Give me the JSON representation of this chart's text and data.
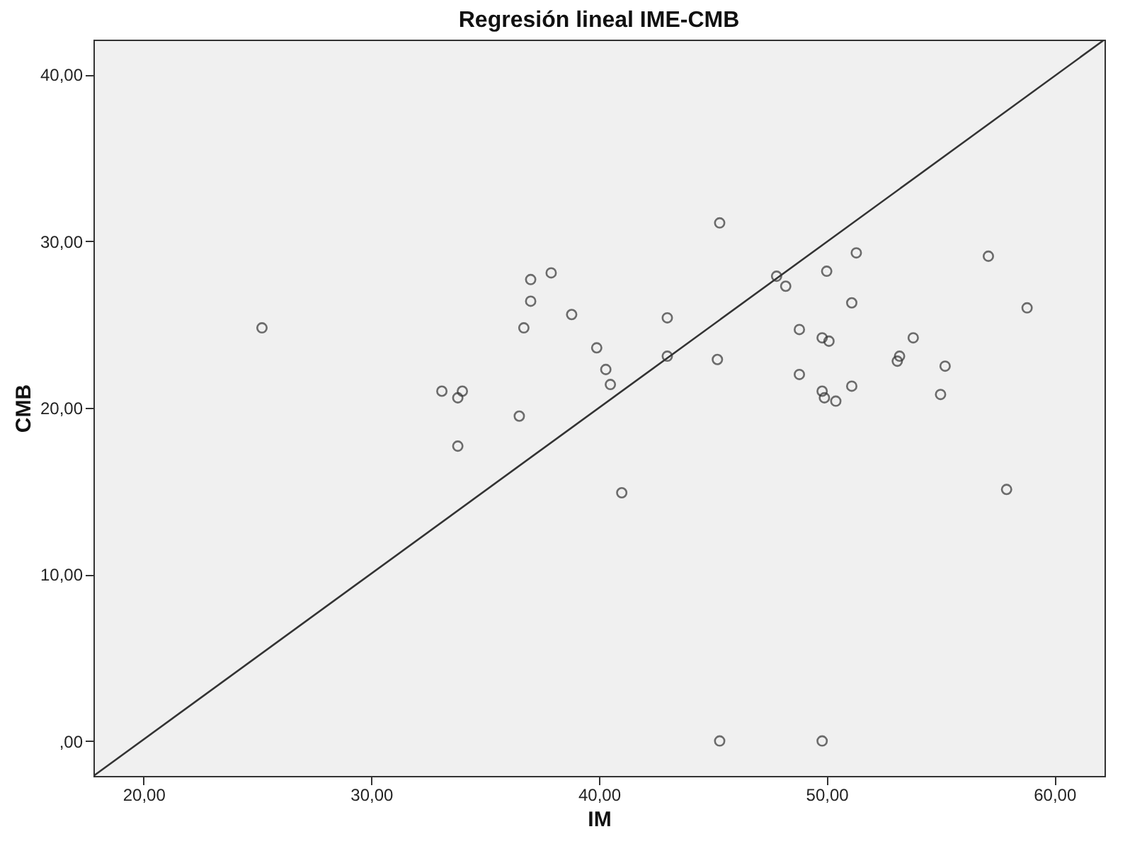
{
  "chart_data": {
    "type": "scatter",
    "title": "Regresión lineal IME-CMB",
    "xlabel": "IM",
    "ylabel": "CMB",
    "xlim": [
      17.8,
      62.2
    ],
    "ylim": [
      -2.1,
      42.1
    ],
    "xticks": [
      {
        "value": 20,
        "label": "20,00"
      },
      {
        "value": 30,
        "label": "30,00"
      },
      {
        "value": 40,
        "label": "40,00"
      },
      {
        "value": 50,
        "label": "50,00"
      },
      {
        "value": 60,
        "label": "60,00"
      }
    ],
    "yticks": [
      {
        "value": 0,
        "label": ",00"
      },
      {
        "value": 10,
        "label": "10,00"
      },
      {
        "value": 20,
        "label": "20,00"
      },
      {
        "value": 30,
        "label": "30,00"
      },
      {
        "value": 40,
        "label": "40,00"
      }
    ],
    "grid": false,
    "marker": "circle",
    "series": [
      {
        "color": "#333333",
        "x": [
          25.2,
          33.1,
          33.8,
          34.0,
          33.8,
          36.5,
          36.7,
          37.0,
          37.0,
          37.9,
          38.8,
          39.9,
          40.3,
          40.5,
          41.0,
          43.0,
          43.0,
          45.2,
          45.3,
          45.3,
          47.8,
          48.2,
          48.8,
          48.8,
          49.8,
          49.9,
          49.8,
          50.1,
          50.4,
          50.0,
          49.8,
          51.1,
          51.3,
          51.1,
          53.1,
          53.2,
          53.8,
          55.2,
          55.0,
          57.1,
          58.8,
          57.9
        ],
        "values": [
          24.8,
          21.0,
          20.6,
          21.0,
          17.7,
          19.5,
          24.8,
          26.4,
          27.7,
          28.1,
          25.6,
          23.6,
          22.3,
          21.4,
          14.9,
          25.4,
          23.1,
          22.9,
          31.1,
          0,
          27.9,
          27.3,
          24.7,
          22.0,
          21.0,
          20.6,
          24.2,
          24.0,
          20.4,
          28.2,
          0,
          26.3,
          29.3,
          21.3,
          22.8,
          23.1,
          24.2,
          22.5,
          20.8,
          29.1,
          26.0,
          15.1
        ]
      },
      {
        "type": "line",
        "color": "#333333",
        "line_style": "solid",
        "marker": "none",
        "x": [
          17.8,
          62.2
        ],
        "values": [
          -2.1,
          42.1
        ]
      }
    ]
  }
}
